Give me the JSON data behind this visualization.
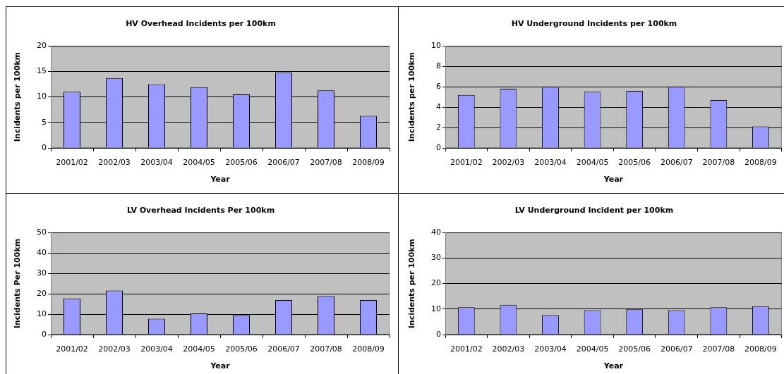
{
  "chart_data": [
    {
      "type": "bar",
      "title": "HV Overhead Incidents per 100km",
      "xlabel": "Year",
      "ylabel": "Incidents per 100km",
      "categories": [
        "2001/02",
        "2002/03",
        "2003/04",
        "2004/05",
        "2005/06",
        "2006/07",
        "2007/08",
        "2008/09"
      ],
      "values": [
        11.0,
        13.7,
        12.5,
        11.9,
        10.5,
        14.8,
        11.3,
        6.3
      ],
      "color": "#9999ff",
      "ylim": [
        0,
        20
      ],
      "yticks": [
        0,
        5,
        10,
        15,
        20
      ],
      "grid": "y"
    },
    {
      "type": "bar",
      "title": "HV Underground Incidents per 100km",
      "xlabel": "Year",
      "ylabel": "Incidents per 100km",
      "categories": [
        "2001/02",
        "2002/03",
        "2003/04",
        "2004/05",
        "2005/06",
        "2006/07",
        "2007/08",
        "2008/09"
      ],
      "values": [
        5.2,
        5.8,
        6.0,
        5.5,
        5.6,
        6.0,
        4.7,
        2.1
      ],
      "color": "#9999ff",
      "ylim": [
        0,
        10
      ],
      "yticks": [
        0,
        2,
        4,
        6,
        8,
        10
      ],
      "grid": "y"
    },
    {
      "type": "bar",
      "title": "LV Overhead Incidents Per 100km",
      "xlabel": "Year",
      "ylabel": "Incidents Per 100km",
      "categories": [
        "2001/02",
        "2002/03",
        "2003/04",
        "2004/05",
        "2005/06",
        "2006/07",
        "2007/08",
        "2008/09"
      ],
      "values": [
        17.7,
        21.6,
        7.8,
        10.4,
        9.6,
        16.9,
        18.9,
        16.9
      ],
      "color": "#9999ff",
      "ylim": [
        0,
        50
      ],
      "yticks": [
        0,
        10,
        20,
        30,
        40,
        50
      ],
      "grid": "y"
    },
    {
      "type": "bar",
      "title": "LV Underground Incident per 100km",
      "xlabel": "Year",
      "ylabel": "Incidents per 100km",
      "categories": [
        "2001/02",
        "2002/03",
        "2003/04",
        "2004/05",
        "2005/06",
        "2006/07",
        "2007/08",
        "2008/09"
      ],
      "values": [
        10.7,
        11.7,
        7.7,
        9.5,
        9.9,
        9.5,
        10.7,
        11.1
      ],
      "color": "#9999ff",
      "ylim": [
        0,
        40
      ],
      "yticks": [
        0,
        10,
        20,
        30,
        40
      ],
      "grid": "y"
    }
  ]
}
